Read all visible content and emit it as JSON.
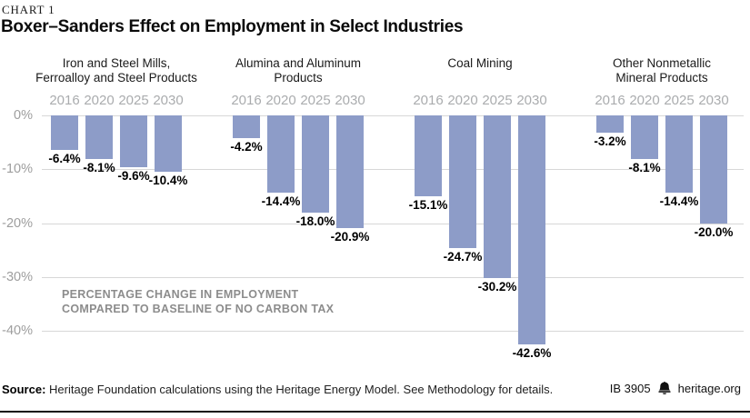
{
  "eyebrow": "CHART 1",
  "title": "Boxer–Sanders Effect on Employment in Select Industries",
  "annotation": {
    "line1": "PERCENTAGE CHANGE IN EMPLOYMENT",
    "line2": "COMPARED TO BASELINE OF NO CARBON TAX"
  },
  "footer": {
    "source_label": "Source:",
    "source_text": " Heritage Foundation calculations using the Heritage Energy Model. See Methodology for details.",
    "report_id": "IB 3905",
    "website": "heritage.org",
    "logo_icon": "heritage-bell-icon"
  },
  "colors": {
    "bar": "#8d9cc8",
    "gridline": "#d7d7d7",
    "axis_text": "#9e9e9e",
    "year_text": "#aaacae",
    "annotation_text": "#8c8c8c"
  },
  "chart_data": {
    "type": "bar",
    "title": "Boxer–Sanders Effect on Employment in Select Industries",
    "subtitle_note": "PERCENTAGE CHANGE IN EMPLOYMENT COMPARED TO BASELINE OF NO CARBON TAX",
    "categories": [
      "2016",
      "2020",
      "2025",
      "2030"
    ],
    "ylabel": "Percentage change in employment vs. baseline of no carbon tax",
    "ylim": [
      -45,
      0
    ],
    "grid": true,
    "legend_position": "none",
    "yticks": [
      {
        "label": "0%",
        "value": 0
      },
      {
        "label": "-10%",
        "value": -10
      },
      {
        "label": "-20%",
        "value": -20
      },
      {
        "label": "-30%",
        "value": -30
      },
      {
        "label": "-40%",
        "value": -40
      }
    ],
    "groups": [
      {
        "name": "Iron and Steel Mills, Ferroalloy and Steel Products",
        "name_lines": [
          "Iron and Steel Mills,",
          "Ferroalloy and Steel Products"
        ],
        "values": [
          -6.4,
          -8.1,
          -9.6,
          -10.4
        ],
        "labels": [
          "-6.4%",
          "-8.1%",
          "-9.6%",
          "-10.4%"
        ]
      },
      {
        "name": "Alumina and Aluminum Products",
        "name_lines": [
          "Alumina and Aluminum",
          "Products"
        ],
        "values": [
          -4.2,
          -14.4,
          -18.0,
          -20.9
        ],
        "labels": [
          "-4.2%",
          "-14.4%",
          "-18.0%",
          "-20.9%"
        ]
      },
      {
        "name": "Coal Mining",
        "name_lines": [
          "Coal Mining"
        ],
        "values": [
          -15.1,
          -24.7,
          -30.2,
          -42.6
        ],
        "labels": [
          "-15.1%",
          "-24.7%",
          "-30.2%",
          "-42.6%"
        ]
      },
      {
        "name": "Other Nonmetallic Mineral Products",
        "name_lines": [
          "Other Nonmetallic",
          "Mineral Products"
        ],
        "values": [
          -3.2,
          -8.1,
          -14.4,
          -20.0
        ],
        "labels": [
          "-3.2%",
          "-8.1%",
          "-14.4%",
          "-20.0%"
        ]
      }
    ]
  }
}
